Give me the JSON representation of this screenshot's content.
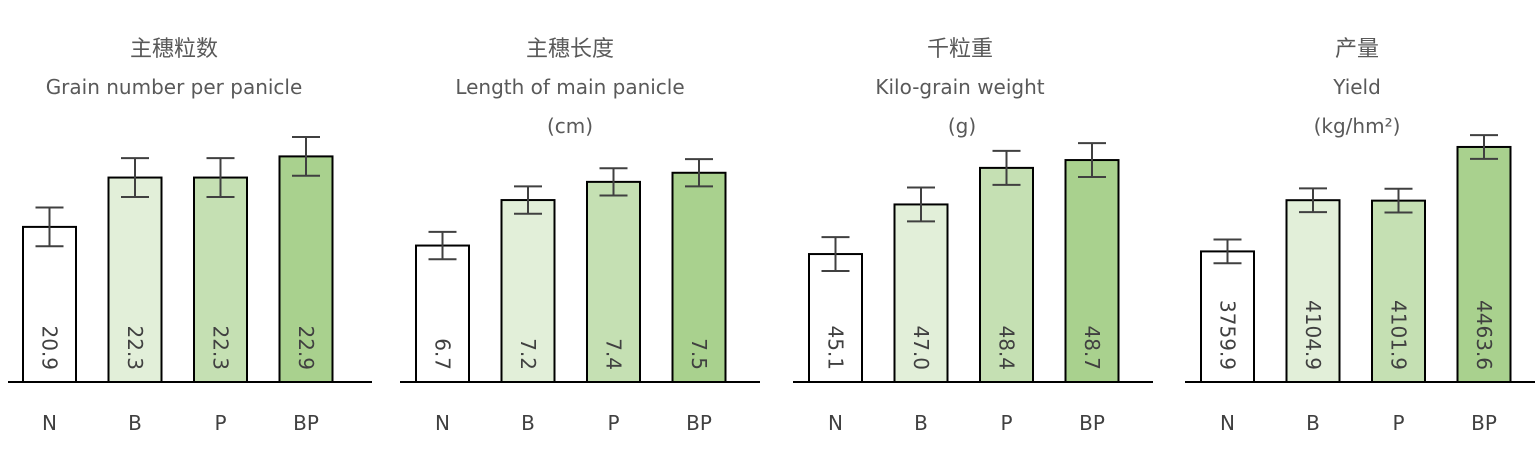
{
  "chart_data": [
    {
      "type": "bar",
      "title": "主穗粒数",
      "subtitle": "Grain number per panicle",
      "unit": "",
      "categories": [
        "N",
        "B",
        "P",
        "BP"
      ],
      "values": [
        20.9,
        22.3,
        22.3,
        22.9
      ],
      "value_labels": [
        "20.9",
        "22.3",
        "22.3",
        "22.9"
      ],
      "error": [
        0.55,
        0.55,
        0.55,
        0.55
      ],
      "ylim": [
        16.5,
        24.5
      ]
    },
    {
      "type": "bar",
      "title": "主穗长度",
      "subtitle": "Length of main panicle",
      "unit": "(cm)",
      "categories": [
        "N",
        "B",
        "P",
        "BP"
      ],
      "values": [
        6.7,
        7.2,
        7.4,
        7.5
      ],
      "value_labels": [
        "6.7",
        "7.2",
        "7.4",
        "7.5"
      ],
      "error": [
        0.15,
        0.15,
        0.15,
        0.15
      ],
      "ylim": [
        5.2,
        8.3
      ]
    },
    {
      "type": "bar",
      "title": "千粒重",
      "subtitle": "Kilo-grain weight",
      "unit": "(g)",
      "categories": [
        "N",
        "B",
        "P",
        "BP"
      ],
      "values": [
        45.1,
        47.0,
        48.4,
        48.7
      ],
      "value_labels": [
        "45.1",
        "47.0",
        "48.4",
        "48.7"
      ],
      "error": [
        0.65,
        0.65,
        0.65,
        0.65
      ],
      "ylim": [
        40.2,
        51.0
      ]
    },
    {
      "type": "bar",
      "title": "产量",
      "subtitle": "Yield",
      "unit": "(kg/hm²)",
      "categories": [
        "N",
        "B",
        "P",
        "BP"
      ],
      "values": [
        3759.9,
        4104.9,
        4101.9,
        4463.6
      ],
      "value_labels": [
        "3759.9",
        "4104.9",
        "4101.9",
        "4463.6"
      ],
      "error": [
        80,
        80,
        80,
        80
      ],
      "ylim": [
        2880,
        4780
      ]
    }
  ],
  "colors": {
    "bar_fills": [
      "#ffffff",
      "#e2efd9",
      "#c5e0b3",
      "#a9d18e"
    ],
    "bar_stroke": "#000000",
    "error_bar": "#404040",
    "text": "#595959"
  }
}
